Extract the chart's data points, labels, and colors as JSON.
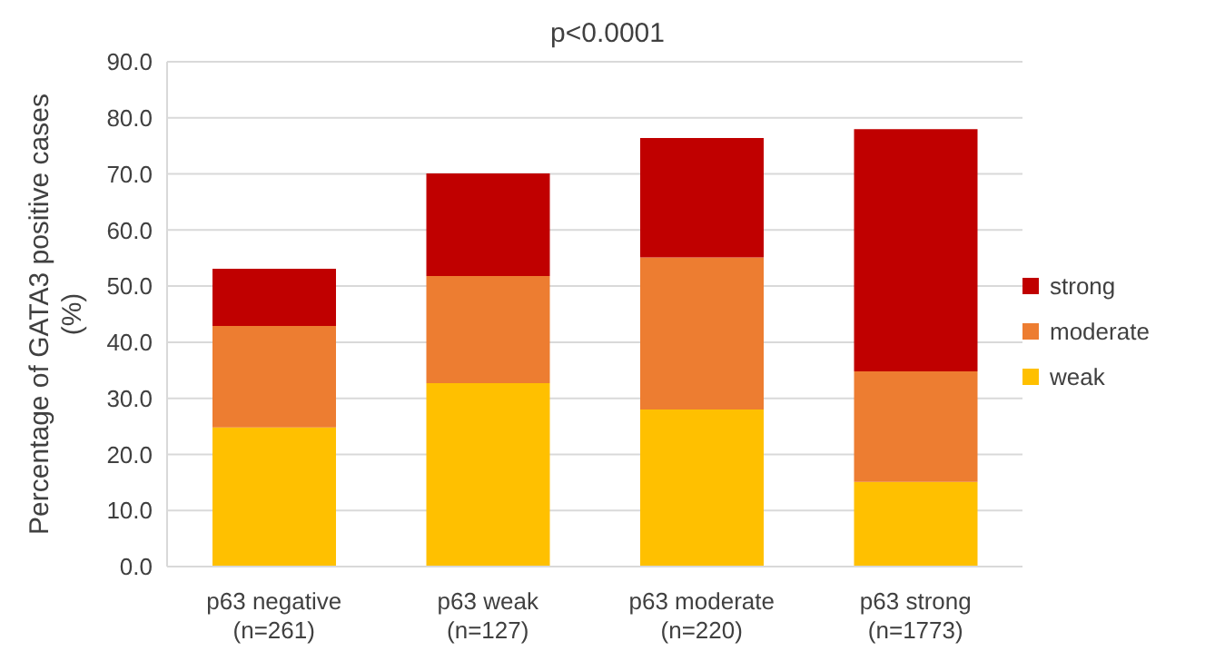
{
  "chart_data": {
    "type": "bar",
    "title": "p<0.0001",
    "ylabel": "Percentage of GATA3 positive cases\n(%)",
    "categories": [
      "p63 negative\n(n=261)",
      "p63 weak\n(n=127)",
      "p63 moderate\n(n=220)",
      "p63 strong\n(n=1773)"
    ],
    "stacked": true,
    "series": [
      {
        "name": "weak",
        "color": "#ffc000",
        "values": [
          24.8,
          32.7,
          28.0,
          15.1
        ]
      },
      {
        "name": "moderate",
        "color": "#ed7d31",
        "values": [
          18.1,
          19.1,
          27.1,
          19.7
        ]
      },
      {
        "name": "strong",
        "color": "#c00000",
        "values": [
          10.2,
          18.3,
          21.3,
          43.2
        ]
      }
    ],
    "ylim": [
      0,
      90
    ],
    "yticks": [
      {
        "value": 0,
        "label": "0.0"
      },
      {
        "value": 10,
        "label": "10.0"
      },
      {
        "value": 20,
        "label": "20.0"
      },
      {
        "value": 30,
        "label": "30.0"
      },
      {
        "value": 40,
        "label": "40.0"
      },
      {
        "value": 50,
        "label": "50.0"
      },
      {
        "value": 60,
        "label": "60.0"
      },
      {
        "value": 70,
        "label": "70.0"
      },
      {
        "value": 80,
        "label": "80.0"
      },
      {
        "value": 90,
        "label": "90.0"
      }
    ],
    "grid": "y",
    "legend": "right"
  }
}
